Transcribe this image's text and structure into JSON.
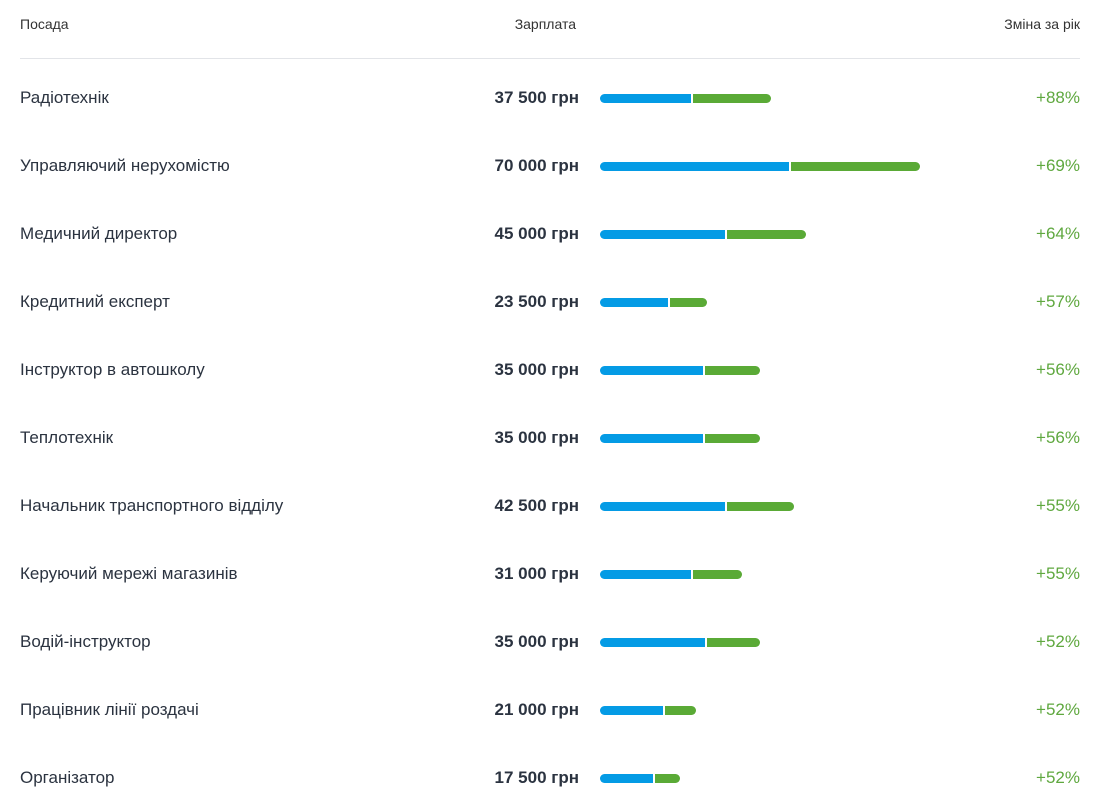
{
  "table": {
    "header": [
      "Посада",
      "Зарплата",
      "Зміна за рік"
    ],
    "rows": [
      {
        "position": "Радіотехнік",
        "salary": 37500,
        "salary_label": "37 500 грн",
        "change": 88,
        "change_label": "+88%"
      },
      {
        "position": "Управляючий нерухомістю",
        "salary": 70000,
        "salary_label": "70 000 грн",
        "change": 69,
        "change_label": "+69%"
      },
      {
        "position": "Медичний директор",
        "salary": 45000,
        "salary_label": "45 000 грн",
        "change": 64,
        "change_label": "+64%"
      },
      {
        "position": "Кредитний експерт",
        "salary": 23500,
        "salary_label": "23 500 грн",
        "change": 57,
        "change_label": "+57%"
      },
      {
        "position": "Інструктор в автошколу",
        "salary": 35000,
        "salary_label": "35 000 грн",
        "change": 56,
        "change_label": "+56%"
      },
      {
        "position": "Теплотехнік",
        "salary": 35000,
        "salary_label": "35 000 грн",
        "change": 56,
        "change_label": "+56%"
      },
      {
        "position": "Начальник транспортного відділу",
        "salary": 42500,
        "salary_label": "42 500 грн",
        "change": 55,
        "change_label": "+55%"
      },
      {
        "position": "Керуючий мережі магазинів",
        "salary": 31000,
        "salary_label": "31 000 грн",
        "change": 55,
        "change_label": "+55%"
      },
      {
        "position": "Водій-інструктор",
        "salary": 35000,
        "salary_label": "35 000 грн",
        "change": 52,
        "change_label": "+52%"
      },
      {
        "position": "Працівник лінії роздачі",
        "salary": 21000,
        "salary_label": "21 000 грн",
        "change": 52,
        "change_label": "+52%"
      },
      {
        "position": "Організатор",
        "salary": 17500,
        "salary_label": "17 500 грн",
        "change": 52,
        "change_label": "+52%"
      }
    ]
  }
}
